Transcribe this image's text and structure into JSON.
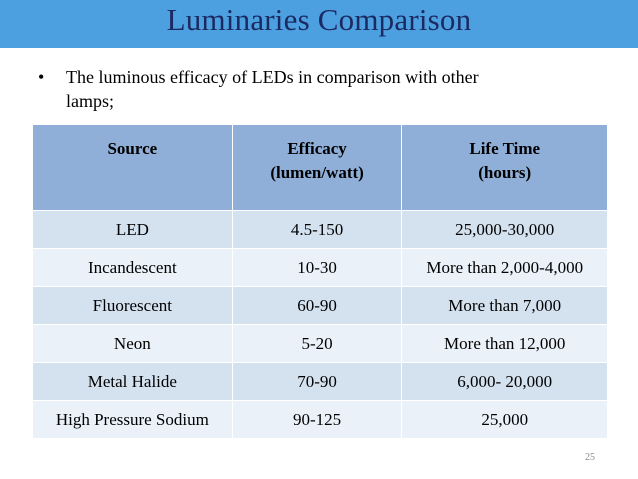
{
  "title": "Luminaries Comparison",
  "bullet": {
    "line1": "The luminous efficacy of LEDs in comparison with other",
    "line2": "lamps;"
  },
  "table": {
    "headers": [
      {
        "line1": "Source",
        "line2": ""
      },
      {
        "line1": "Efficacy",
        "line2": "(lumen/watt)"
      },
      {
        "line1": "Life Time",
        "line2": "(hours)"
      }
    ],
    "rows": [
      [
        "LED",
        "4.5-150",
        "25,000-30,000"
      ],
      [
        "Incandescent",
        "10-30",
        "More than 2,000-4,000"
      ],
      [
        "Fluorescent",
        "60-90",
        "More than 7,000"
      ],
      [
        "Neon",
        "5-20",
        "More than 12,000"
      ],
      [
        "Metal Halide",
        "70-90",
        "6,000- 20,000"
      ],
      [
        "High Pressure Sodium",
        "90-125",
        "25,000"
      ]
    ]
  },
  "page_number": "25",
  "colors": {
    "title_bar": "#4da0df",
    "title_text": "#1b2a63",
    "header_row": "#8fafd8",
    "row_odd": "#d4e2f0",
    "row_even": "#eaf1f8"
  }
}
